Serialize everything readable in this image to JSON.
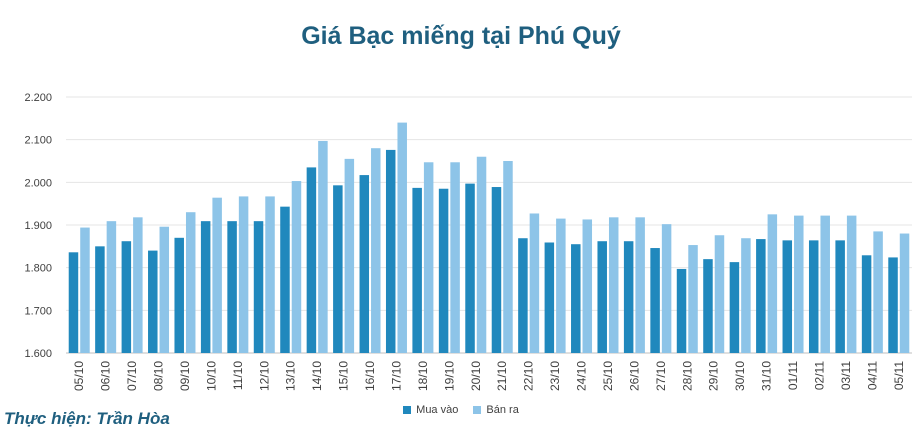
{
  "chart_data": {
    "type": "bar",
    "title": "Giá Bạc miếng tại Phú Quý",
    "xlabel": "",
    "ylabel": "",
    "ylim": [
      1600,
      2200
    ],
    "yticks": [
      "1.600",
      "1.700",
      "1.800",
      "1.900",
      "2.000",
      "2.100",
      "2.200"
    ],
    "grid": true,
    "legend_position": "bottom",
    "categories": [
      "05/10",
      "06/10",
      "07/10",
      "08/10",
      "09/10",
      "10/10",
      "11/10",
      "12/10",
      "13/10",
      "14/10",
      "15/10",
      "16/10",
      "17/10",
      "18/10",
      "19/10",
      "20/10",
      "21/10",
      "22/10",
      "23/10",
      "24/10",
      "25/10",
      "26/10",
      "27/10",
      "28/10",
      "29/10",
      "30/10",
      "31/10",
      "01/11",
      "02/11",
      "03/11",
      "04/11",
      "05/11"
    ],
    "series": [
      {
        "name": "Mua vào",
        "color": "#2088bd",
        "values": [
          1836,
          1850,
          1862,
          1840,
          1870,
          1909,
          1909,
          1909,
          1943,
          2035,
          1993,
          2017,
          2076,
          1987,
          1985,
          1997,
          1989,
          1869,
          1859,
          1855,
          1862,
          1862,
          1846,
          1797,
          1820,
          1813,
          1867,
          1864,
          1864,
          1864,
          1829,
          1824
        ]
      },
      {
        "name": "Bán ra",
        "color": "#8dc4e8",
        "values": [
          1894,
          1909,
          1918,
          1896,
          1930,
          1964,
          1967,
          1967,
          2003,
          2097,
          2055,
          2080,
          2140,
          2047,
          2047,
          2060,
          2050,
          1927,
          1915,
          1913,
          1918,
          1918,
          1902,
          1853,
          1876,
          1869,
          1925,
          1922,
          1922,
          1922,
          1885,
          1880
        ]
      }
    ]
  },
  "credit": "Thực hiện: Trần Hòa"
}
